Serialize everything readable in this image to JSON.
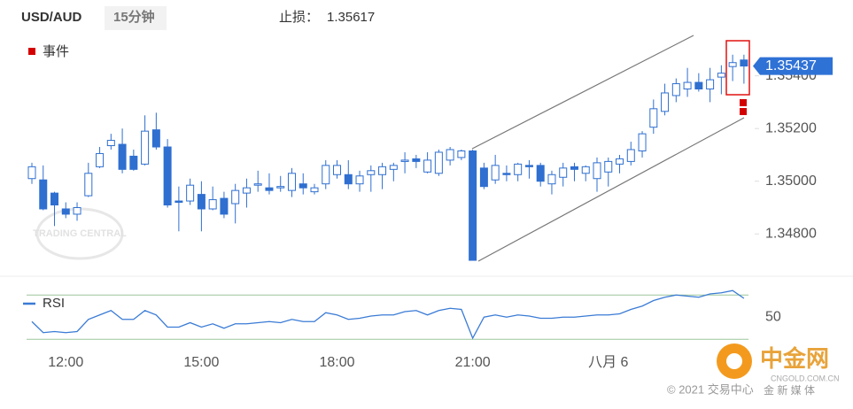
{
  "header": {
    "symbol": "USD/AUD",
    "interval": "15分钟",
    "stop_loss_label": "止损：",
    "stop_loss": 1.35617,
    "event_legend": "事件"
  },
  "chart_data": [
    {
      "type": "candlestick",
      "categories": [
        null,
        null,
        null,
        "12:00",
        null,
        null,
        null,
        null,
        null,
        null,
        null,
        null,
        null,
        null,
        null,
        "15:00",
        null,
        null,
        null,
        null,
        null,
        null,
        null,
        null,
        null,
        null,
        null,
        "18:00",
        null,
        null,
        null,
        null,
        null,
        null,
        null,
        null,
        null,
        null,
        null,
        "21:00",
        null,
        null,
        null,
        null,
        null,
        null,
        null,
        null,
        null,
        null,
        null,
        "八月 6",
        null,
        null,
        null,
        null,
        null,
        null,
        null,
        null,
        null,
        null,
        null,
        null
      ],
      "open": [
        1.3501,
        1.35005,
        1.34955,
        1.34895,
        1.34875,
        1.34945,
        1.35055,
        1.35135,
        1.3514,
        1.35095,
        1.35065,
        1.35195,
        1.3513,
        1.34925,
        1.34925,
        1.3495,
        1.34895,
        1.34935,
        1.34915,
        1.34955,
        1.34985,
        1.34975,
        1.34975,
        1.34965,
        1.3499,
        1.3496,
        1.3499,
        1.35025,
        1.35025,
        1.3499,
        1.35025,
        1.35025,
        1.35045,
        1.3508,
        1.35085,
        1.35035,
        1.3503,
        1.3508,
        1.3509,
        1.35115,
        1.3505,
        1.35005,
        1.3503,
        1.35025,
        1.3506,
        1.3506,
        1.3499,
        1.35015,
        1.35055,
        1.3503,
        1.3501,
        1.35035,
        1.35065,
        1.35075,
        1.35115,
        1.35205,
        1.35265,
        1.35325,
        1.3535,
        1.35375,
        1.3535,
        1.35395,
        1.35435,
        1.3546
      ],
      "high": [
        1.3507,
        1.3506,
        1.3496,
        1.3492,
        1.3492,
        1.3507,
        1.3513,
        1.3518,
        1.352,
        1.3512,
        1.3525,
        1.3526,
        1.3516,
        1.3498,
        1.3501,
        1.35,
        1.3498,
        1.3496,
        1.3499,
        1.3501,
        1.3504,
        1.3503,
        1.3502,
        1.3505,
        1.3503,
        1.3499,
        1.3508,
        1.3508,
        1.3508,
        1.3504,
        1.3506,
        1.3507,
        1.3507,
        1.3511,
        1.351,
        1.3511,
        1.3512,
        1.3513,
        1.3512,
        1.3512,
        1.3507,
        1.351,
        1.3506,
        1.3507,
        1.3508,
        1.3507,
        1.3504,
        1.3507,
        1.3507,
        1.3506,
        1.3509,
        1.3509,
        1.351,
        1.3515,
        1.3519,
        1.3531,
        1.3537,
        1.3539,
        1.3543,
        1.3541,
        1.3543,
        1.3544,
        1.3548,
        1.3548
      ],
      "low": [
        1.3499,
        1.3489,
        1.3483,
        1.3486,
        1.3485,
        1.3494,
        1.3505,
        1.3512,
        1.3503,
        1.3504,
        1.3506,
        1.3512,
        1.349,
        1.3481,
        1.3491,
        1.3481,
        1.3489,
        1.3486,
        1.3484,
        1.349,
        1.3496,
        1.3495,
        1.3496,
        1.3494,
        1.3495,
        1.3495,
        1.3497,
        1.3501,
        1.3497,
        1.3496,
        1.3496,
        1.3497,
        1.35,
        1.3503,
        1.3505,
        1.3503,
        1.3502,
        1.3506,
        1.3508,
        1.347,
        1.3497,
        1.3499,
        1.35,
        1.35,
        1.3501,
        1.3498,
        1.3495,
        1.3498,
        1.35,
        1.35,
        1.3496,
        1.3498,
        1.3503,
        1.3506,
        1.3509,
        1.3518,
        1.3525,
        1.353,
        1.3532,
        1.3534,
        1.353,
        1.3533,
        1.3538,
        1.3537
      ],
      "close": [
        1.35055,
        1.34895,
        1.3491,
        1.34875,
        1.349,
        1.3503,
        1.35105,
        1.35155,
        1.35045,
        1.35045,
        1.3519,
        1.3513,
        1.3491,
        1.3492,
        1.34985,
        1.34895,
        1.3493,
        1.34875,
        1.34965,
        1.34975,
        1.3499,
        1.34965,
        1.3498,
        1.3503,
        1.34975,
        1.34975,
        1.3506,
        1.3506,
        1.3499,
        1.3502,
        1.3504,
        1.35055,
        1.3506,
        1.3508,
        1.35075,
        1.3508,
        1.3511,
        1.3512,
        1.35115,
        1.347,
        1.3498,
        1.3506,
        1.35025,
        1.35065,
        1.35055,
        1.35,
        1.35025,
        1.3505,
        1.35045,
        1.35055,
        1.3507,
        1.35075,
        1.35085,
        1.3512,
        1.3518,
        1.35275,
        1.35335,
        1.3537,
        1.35375,
        1.3535,
        1.35385,
        1.3541,
        1.3545,
        1.35437
      ],
      "up_color": "#ffffff",
      "down_color": "#2f6fd0",
      "wick_color": "#2f6fd0",
      "ylim": [
        1.3468,
        1.3557
      ],
      "yticks": [
        {
          "value": 1.348,
          "label": "1.34800"
        },
        {
          "value": 1.35,
          "label": "1.35000"
        },
        {
          "value": 1.352,
          "label": "1.35200"
        },
        {
          "value": 1.354,
          "label": "1.35400"
        }
      ],
      "last_price": 1.35437
    },
    {
      "type": "line",
      "series": [
        {
          "name": "RSI",
          "color": "#3a7bd5",
          "values": [
            46,
            36,
            37,
            36,
            37,
            48,
            52,
            56,
            48,
            48,
            56,
            52,
            41,
            41,
            45,
            41,
            44,
            40,
            44,
            44,
            45,
            46,
            45,
            48,
            46,
            46,
            54,
            52,
            48,
            49,
            51,
            52,
            52,
            55,
            56,
            52,
            56,
            58,
            57,
            31,
            50,
            52,
            50,
            52,
            51,
            49,
            49,
            50,
            50,
            51,
            52,
            52,
            53,
            57,
            60,
            65,
            68,
            70,
            69,
            68,
            71,
            72,
            74,
            67
          ]
        }
      ],
      "ylim": [
        23,
        79
      ],
      "yticks": [
        50
      ],
      "levels": [
        30,
        70
      ],
      "level_color": "#9cc59c"
    }
  ],
  "watermark": "TRADING CENTRAL",
  "footer": {
    "copyright": "© 2021 交易中心",
    "logo": "中金网",
    "site": "CNGOLD.COM.CN",
    "tagline": "金 新 媒 体"
  }
}
